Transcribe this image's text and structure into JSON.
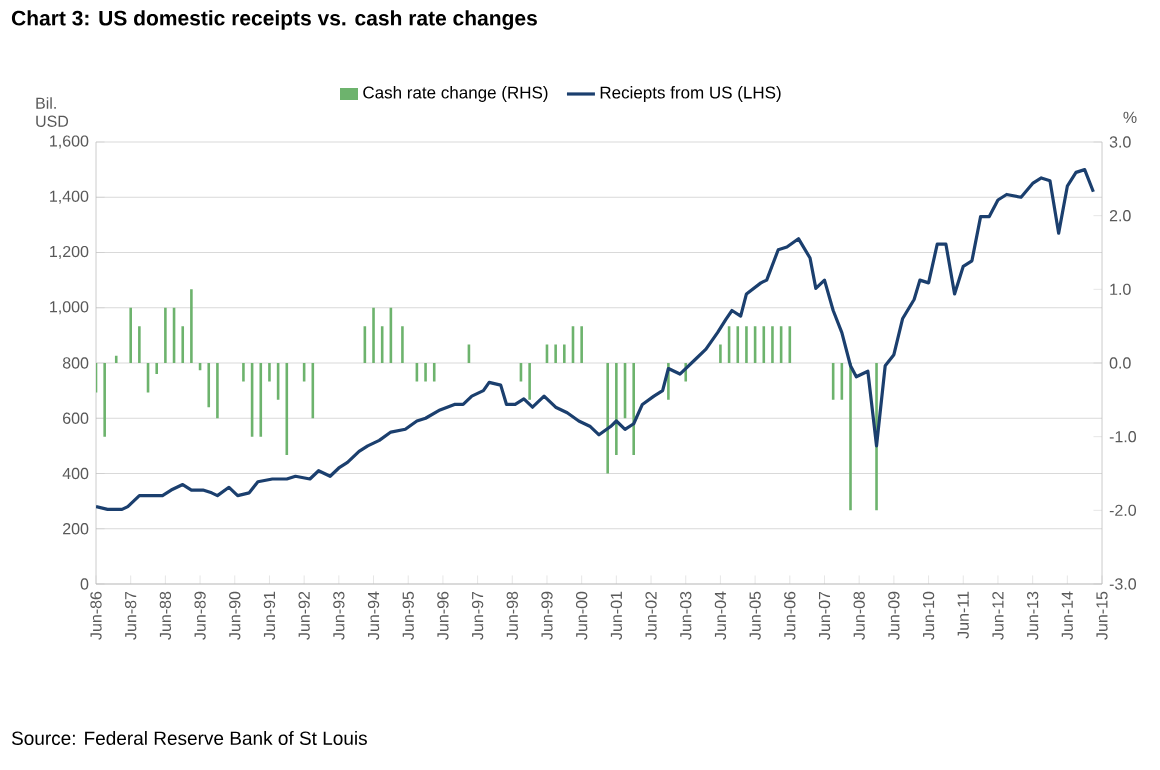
{
  "chart_data": {
    "type": "line",
    "title": "Chart 3: US domestic receipts vs. cash rate changes",
    "ylabel": "Bil. USD",
    "y2label": "%",
    "annotations": [
      "Source: Federal Reserve Bank of St Louis"
    ],
    "xlim": [
      "1986-06",
      "2015-06"
    ],
    "xticks": [
      {
        "value": "1986-06",
        "label": "Jun-86"
      },
      {
        "value": "1987-06",
        "label": "Jun-87"
      },
      {
        "value": "1988-06",
        "label": "Jun-88"
      },
      {
        "value": "1989-06",
        "label": "Jun-89"
      },
      {
        "value": "1990-06",
        "label": "Jun-90"
      },
      {
        "value": "1991-06",
        "label": "Jun-91"
      },
      {
        "value": "1992-06",
        "label": "Jun-92"
      },
      {
        "value": "1993-06",
        "label": "Jun-93"
      },
      {
        "value": "1994-06",
        "label": "Jun-94"
      },
      {
        "value": "1995-06",
        "label": "Jun-95"
      },
      {
        "value": "1996-06",
        "label": "Jun-96"
      },
      {
        "value": "1997-06",
        "label": "Jun-97"
      },
      {
        "value": "1998-06",
        "label": "Jun-98"
      },
      {
        "value": "1999-06",
        "label": "Jun-99"
      },
      {
        "value": "2000-06",
        "label": "Jun-00"
      },
      {
        "value": "2001-06",
        "label": "Jun-01"
      },
      {
        "value": "2002-06",
        "label": "Jun-02"
      },
      {
        "value": "2003-06",
        "label": "Jun-03"
      },
      {
        "value": "2004-06",
        "label": "Jun-04"
      },
      {
        "value": "2005-06",
        "label": "Jun-05"
      },
      {
        "value": "2006-06",
        "label": "Jun-06"
      },
      {
        "value": "2007-06",
        "label": "Jun-07"
      },
      {
        "value": "2008-06",
        "label": "Jun-08"
      },
      {
        "value": "2009-06",
        "label": "Jun-09"
      },
      {
        "value": "2010-06",
        "label": "Jun-10"
      },
      {
        "value": "2011-06",
        "label": "Jun-11"
      },
      {
        "value": "2012-06",
        "label": "Jun-12"
      },
      {
        "value": "2013-06",
        "label": "Jun-13"
      },
      {
        "value": "2014-06",
        "label": "Jun-14"
      },
      {
        "value": "2015-06",
        "label": "Jun-15"
      }
    ],
    "ylim": [
      0,
      1600
    ],
    "yticks": [
      0,
      200,
      400,
      600,
      800,
      {
        "value": 1000,
        "label": "1,000"
      },
      {
        "value": 1200,
        "label": "1,200"
      },
      {
        "value": 1400,
        "label": "1,400"
      },
      {
        "value": 1600,
        "label": "1,600"
      }
    ],
    "y2lim": [
      -3,
      3
    ],
    "y2ticks": [
      {
        "value": -3,
        "label": "-3.0"
      },
      {
        "value": -2,
        "label": "-2.0"
      },
      {
        "value": -1,
        "label": "-1.0"
      },
      {
        "value": 0,
        "label": "0.0"
      },
      {
        "value": 1,
        "label": "1.0"
      },
      {
        "value": 2,
        "label": "2.0"
      },
      {
        "value": 3,
        "label": "3.0"
      }
    ],
    "grid": "y",
    "legend": "top",
    "series": [
      {
        "name": "Cash rate change (RHS)",
        "type": "bar",
        "axis": "y2",
        "color": "#6db36d",
        "x": [
          "1986-06",
          "1986-09",
          "1987-01",
          "1987-06",
          "1987-09",
          "1987-12",
          "1988-03",
          "1988-06",
          "1988-09",
          "1988-12",
          "1989-03",
          "1989-06",
          "1989-09",
          "1989-12",
          "1990-09",
          "1990-12",
          "1991-03",
          "1991-06",
          "1991-09",
          "1991-12",
          "1992-06",
          "1992-09",
          "1994-03",
          "1994-06",
          "1994-09",
          "1994-12",
          "1995-04",
          "1995-09",
          "1995-12",
          "1996-03",
          "1997-03",
          "1998-09",
          "1998-12",
          "1999-06",
          "1999-09",
          "1999-12",
          "2000-03",
          "2000-06",
          "2001-03",
          "2001-06",
          "2001-09",
          "2001-12",
          "2002-12",
          "2003-06",
          "2004-06",
          "2004-09",
          "2004-12",
          "2005-03",
          "2005-06",
          "2005-09",
          "2005-12",
          "2006-03",
          "2006-06",
          "2007-09",
          "2007-12",
          "2008-03",
          "2008-12"
        ],
        "values": [
          -0.4,
          -1.0,
          0.1,
          0.75,
          0.5,
          -0.4,
          -0.15,
          0.75,
          0.75,
          0.5,
          1.0,
          -0.1,
          -0.6,
          -0.75,
          -0.25,
          -1.0,
          -1.0,
          -0.25,
          -0.5,
          -1.25,
          -0.25,
          -0.75,
          0.5,
          0.75,
          0.5,
          0.75,
          0.5,
          -0.25,
          -0.25,
          -0.25,
          0.25,
          -0.25,
          -0.5,
          0.25,
          0.25,
          0.25,
          0.5,
          0.5,
          -1.5,
          -1.25,
          -0.75,
          -1.25,
          -0.5,
          -0.25,
          0.25,
          0.5,
          0.5,
          0.5,
          0.5,
          0.5,
          0.5,
          0.5,
          0.5,
          -0.5,
          -0.5,
          -2.0,
          -2.0
        ]
      },
      {
        "name": "Reciepts from US (LHS)",
        "axis": "y",
        "color": "#1b3f6e",
        "x": [
          "1986-06",
          "1986-10",
          "1987-03",
          "1987-05",
          "1987-09",
          "1987-12",
          "1988-05",
          "1988-08",
          "1988-12",
          "1989-03",
          "1989-07",
          "1989-10",
          "1989-12",
          "1990-04",
          "1990-07",
          "1990-11",
          "1991-02",
          "1991-07",
          "1991-12",
          "1992-03",
          "1992-08",
          "1992-11",
          "1993-03",
          "1993-06",
          "1993-09",
          "1994-01",
          "1994-04",
          "1994-08",
          "1994-12",
          "1995-05",
          "1995-09",
          "1995-12",
          "1996-05",
          "1996-10",
          "1997-01",
          "1997-04",
          "1997-08",
          "1997-10",
          "1998-02",
          "1998-04",
          "1998-07",
          "1998-10",
          "1999-01",
          "1999-05",
          "1999-09",
          "2000-01",
          "2000-05",
          "2000-09",
          "2000-12",
          "2001-04",
          "2001-06",
          "2001-09",
          "2001-12",
          "2002-03",
          "2002-07",
          "2002-10",
          "2002-12",
          "2003-04",
          "2003-09",
          "2004-01",
          "2004-05",
          "2004-08",
          "2004-10",
          "2005-01",
          "2005-03",
          "2005-08",
          "2005-10",
          "2006-02",
          "2006-05",
          "2006-09",
          "2007-01",
          "2007-03",
          "2007-06",
          "2007-09",
          "2007-12",
          "2008-03",
          "2008-05",
          "2008-09",
          "2008-12",
          "2009-03",
          "2009-06",
          "2009-09",
          "2010-01",
          "2010-03",
          "2010-06",
          "2010-09",
          "2010-12",
          "2011-03",
          "2011-06",
          "2011-09",
          "2011-12",
          "2012-03",
          "2012-06",
          "2012-09",
          "2013-02",
          "2013-06",
          "2013-09",
          "2013-12",
          "2014-03",
          "2014-06",
          "2014-09",
          "2014-12",
          "2015-03"
        ],
        "values": [
          280,
          270,
          270,
          280,
          320,
          320,
          320,
          340,
          360,
          340,
          340,
          330,
          320,
          350,
          320,
          330,
          370,
          380,
          380,
          390,
          380,
          410,
          390,
          420,
          440,
          480,
          500,
          520,
          550,
          560,
          590,
          600,
          630,
          650,
          650,
          680,
          700,
          730,
          720,
          650,
          650,
          670,
          640,
          680,
          640,
          620,
          590,
          570,
          540,
          570,
          590,
          560,
          580,
          650,
          680,
          700,
          780,
          760,
          810,
          850,
          910,
          960,
          990,
          970,
          1050,
          1090,
          1100,
          1210,
          1220,
          1250,
          1180,
          1070,
          1100,
          990,
          910,
          790,
          750,
          770,
          500,
          790,
          830,
          960,
          1030,
          1100,
          1090,
          1230,
          1230,
          1050,
          1150,
          1170,
          1330,
          1330,
          1390,
          1410,
          1400,
          1450,
          1470,
          1460,
          1270,
          1440,
          1490,
          1500,
          1420
        ]
      }
    ]
  }
}
